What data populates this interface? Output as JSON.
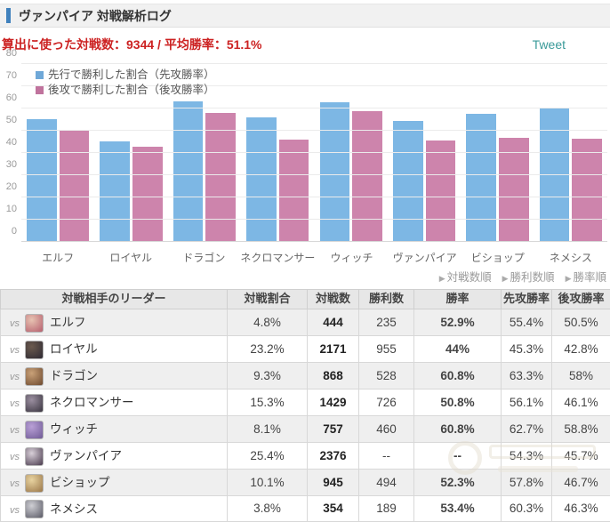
{
  "header": {
    "title": "ヴァンパイア 対戦解析ログ"
  },
  "stats": {
    "summary": "算出に使った対戦数：9344 / 平均勝率：51.1%"
  },
  "tweet": {
    "label": "Tweet"
  },
  "chart_data": {
    "type": "bar",
    "categories": [
      "エルフ",
      "ロイヤル",
      "ドラゴン",
      "ネクロマンサー",
      "ウィッチ",
      "ヴァンパイア",
      "ビショップ",
      "ネメシス"
    ],
    "series": [
      {
        "name": "先行で勝利した割合（先攻勝率）",
        "color": "#7db7e4",
        "legend_color": "#6fa8d8",
        "values": [
          55.4,
          45.3,
          63.3,
          56.1,
          62.7,
          54.3,
          57.8,
          60.3
        ]
      },
      {
        "name": "後攻で勝利した割合（後攻勝率）",
        "color": "#cd84ac",
        "legend_color": "#c0739d",
        "values": [
          50.5,
          42.8,
          58.0,
          46.1,
          58.8,
          45.7,
          46.7,
          46.3
        ]
      }
    ],
    "title": "",
    "xlabel": "",
    "ylabel": "",
    "ylim": [
      0,
      80
    ],
    "ytick_step": 10,
    "grid": true,
    "legend_position": "top-left"
  },
  "sort_links": {
    "marker": "▶",
    "items": [
      {
        "label": "対戦数順"
      },
      {
        "label": "勝利数順"
      },
      {
        "label": "勝率順"
      }
    ]
  },
  "table": {
    "columns": [
      "対戦相手のリーダー",
      "対戦割合",
      "対戦数",
      "勝利数",
      "勝率",
      "先攻勝率",
      "後攻勝率"
    ],
    "vs_label": "vs",
    "rows": [
      {
        "leader": "エルフ",
        "share": "4.8%",
        "battles": "444",
        "wins": "235",
        "rate": "52.9%",
        "rate_style": "orange",
        "first": "55.4%",
        "second": "50.5%",
        "avatar_colors": [
          "#e7c3b2",
          "#b65f6e"
        ]
      },
      {
        "leader": "ロイヤル",
        "share": "23.2%",
        "battles": "2171",
        "wins": "955",
        "rate": "44%",
        "rate_style": "dark",
        "first": "45.3%",
        "second": "42.8%",
        "avatar_colors": [
          "#6b5a4e",
          "#2e2a33"
        ]
      },
      {
        "leader": "ドラゴン",
        "share": "9.3%",
        "battles": "868",
        "wins": "528",
        "rate": "60.8%",
        "rate_style": "orange",
        "first": "63.3%",
        "second": "58%",
        "avatar_colors": [
          "#c9a178",
          "#6e4a2f"
        ]
      },
      {
        "leader": "ネクロマンサー",
        "share": "15.3%",
        "battles": "1429",
        "wins": "726",
        "rate": "50.8%",
        "rate_style": "orange",
        "first": "56.1%",
        "second": "46.1%",
        "avatar_colors": [
          "#9b8fa0",
          "#3a3540"
        ]
      },
      {
        "leader": "ウィッチ",
        "share": "8.1%",
        "battles": "757",
        "wins": "460",
        "rate": "60.8%",
        "rate_style": "orange",
        "first": "62.7%",
        "second": "58.8%",
        "avatar_colors": [
          "#b9a0d6",
          "#6f5a96"
        ]
      },
      {
        "leader": "ヴァンパイア",
        "share": "25.4%",
        "battles": "2376",
        "wins": "--",
        "rate": "--",
        "rate_style": "dark",
        "first": "54.3%",
        "second": "45.7%",
        "avatar_colors": [
          "#d8cfd8",
          "#4a3b4e"
        ]
      },
      {
        "leader": "ビショップ",
        "share": "10.1%",
        "battles": "945",
        "wins": "494",
        "rate": "52.3%",
        "rate_style": "orange",
        "first": "57.8%",
        "second": "46.7%",
        "avatar_colors": [
          "#e8d3a0",
          "#9a7648"
        ]
      },
      {
        "leader": "ネメシス",
        "share": "3.8%",
        "battles": "354",
        "wins": "189",
        "rate": "53.4%",
        "rate_style": "orange",
        "first": "60.3%",
        "second": "46.3%",
        "avatar_colors": [
          "#cfcfd4",
          "#5a5a66"
        ]
      }
    ]
  },
  "colors": {
    "title_accent": "#4081bd",
    "stats_red": "#cc2222",
    "tweet_teal": "#3a9a99",
    "rate_orange": "#d9713c",
    "bar_first": "#7db7e4",
    "bar_second": "#cd84ac"
  }
}
